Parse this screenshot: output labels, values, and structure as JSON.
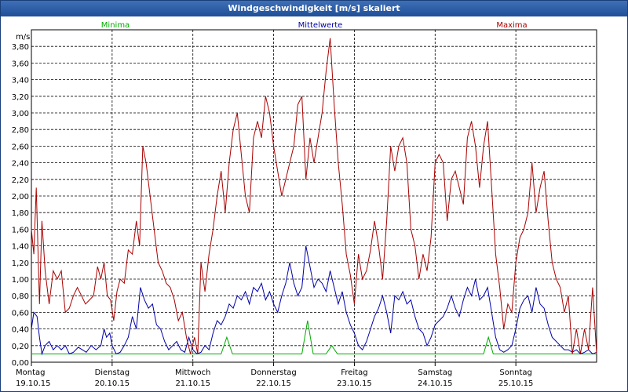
{
  "window": {
    "title": "Windgeschwindigkeit [m/s] skaliert"
  },
  "chart_data": {
    "type": "line",
    "title": "Windgeschwindigkeit [m/s] skaliert",
    "ylabel": "m/s",
    "xlabel": "",
    "ylim": [
      0,
      4.0
    ],
    "xlim": [
      0,
      7
    ],
    "grid": true,
    "legend_placement": "top",
    "y_ticks": [
      "0,00",
      "0,20",
      "0,40",
      "0,60",
      "0,80",
      "1,00",
      "1,20",
      "1,40",
      "1,60",
      "1,80",
      "2,00",
      "2,20",
      "2,40",
      "2,60",
      "2,80",
      "3,00",
      "3,20",
      "3,40",
      "3,60",
      "3,80"
    ],
    "x_ticks": [
      {
        "day": "Montag",
        "date": "19.10.15"
      },
      {
        "day": "Dienstag",
        "date": "20.10.15"
      },
      {
        "day": "Mittwoch",
        "date": "21.10.15"
      },
      {
        "day": "Donnerstag",
        "date": "22.10.15"
      },
      {
        "day": "Freitag",
        "date": "23.10.15"
      },
      {
        "day": "Samstag",
        "date": "24.10.15"
      },
      {
        "day": "Sonntag",
        "date": "25.10.15"
      }
    ],
    "series": [
      {
        "name": "Minima",
        "color": "#00aa00",
        "points": [
          [
            0,
            0.1
          ],
          [
            2.35,
            0.1
          ],
          [
            2.42,
            0.3
          ],
          [
            2.49,
            0.1
          ],
          [
            3.35,
            0.1
          ],
          [
            3.42,
            0.5
          ],
          [
            3.49,
            0.1
          ],
          [
            3.65,
            0.1
          ],
          [
            3.72,
            0.2
          ],
          [
            3.79,
            0.1
          ],
          [
            5.6,
            0.1
          ],
          [
            5.66,
            0.3
          ],
          [
            5.72,
            0.1
          ],
          [
            7,
            0.1
          ]
        ]
      },
      {
        "name": "Mittelwerte",
        "color": "#0000aa",
        "points": [
          [
            0,
            0.4
          ],
          [
            0.03,
            0.6
          ],
          [
            0.07,
            0.55
          ],
          [
            0.1,
            0.3
          ],
          [
            0.13,
            0.1
          ],
          [
            0.17,
            0.2
          ],
          [
            0.22,
            0.25
          ],
          [
            0.27,
            0.15
          ],
          [
            0.32,
            0.2
          ],
          [
            0.37,
            0.15
          ],
          [
            0.42,
            0.2
          ],
          [
            0.47,
            0.1
          ],
          [
            0.52,
            0.12
          ],
          [
            0.58,
            0.18
          ],
          [
            0.63,
            0.15
          ],
          [
            0.68,
            0.12
          ],
          [
            0.74,
            0.2
          ],
          [
            0.8,
            0.15
          ],
          [
            0.86,
            0.2
          ],
          [
            0.9,
            0.4
          ],
          [
            0.93,
            0.3
          ],
          [
            0.97,
            0.35
          ],
          [
            1.0,
            0.2
          ],
          [
            1.05,
            0.1
          ],
          [
            1.1,
            0.12
          ],
          [
            1.15,
            0.2
          ],
          [
            1.2,
            0.3
          ],
          [
            1.25,
            0.55
          ],
          [
            1.3,
            0.4
          ],
          [
            1.35,
            0.9
          ],
          [
            1.4,
            0.75
          ],
          [
            1.45,
            0.65
          ],
          [
            1.5,
            0.7
          ],
          [
            1.55,
            0.45
          ],
          [
            1.6,
            0.4
          ],
          [
            1.65,
            0.25
          ],
          [
            1.7,
            0.15
          ],
          [
            1.75,
            0.2
          ],
          [
            1.8,
            0.25
          ],
          [
            1.85,
            0.15
          ],
          [
            1.9,
            0.12
          ],
          [
            1.95,
            0.3
          ],
          [
            2.0,
            0.15
          ],
          [
            2.05,
            0.1
          ],
          [
            2.1,
            0.12
          ],
          [
            2.15,
            0.2
          ],
          [
            2.2,
            0.15
          ],
          [
            2.25,
            0.35
          ],
          [
            2.3,
            0.5
          ],
          [
            2.35,
            0.45
          ],
          [
            2.4,
            0.55
          ],
          [
            2.45,
            0.7
          ],
          [
            2.5,
            0.65
          ],
          [
            2.55,
            0.8
          ],
          [
            2.6,
            0.75
          ],
          [
            2.65,
            0.85
          ],
          [
            2.7,
            0.7
          ],
          [
            2.75,
            0.9
          ],
          [
            2.8,
            0.85
          ],
          [
            2.85,
            0.95
          ],
          [
            2.9,
            0.75
          ],
          [
            2.95,
            0.85
          ],
          [
            3.0,
            0.7
          ],
          [
            3.05,
            0.6
          ],
          [
            3.1,
            0.8
          ],
          [
            3.15,
            0.95
          ],
          [
            3.2,
            1.2
          ],
          [
            3.25,
            0.95
          ],
          [
            3.3,
            0.8
          ],
          [
            3.35,
            0.9
          ],
          [
            3.4,
            1.4
          ],
          [
            3.45,
            1.15
          ],
          [
            3.5,
            0.9
          ],
          [
            3.55,
            1.0
          ],
          [
            3.6,
            0.95
          ],
          [
            3.65,
            0.85
          ],
          [
            3.7,
            1.1
          ],
          [
            3.75,
            0.9
          ],
          [
            3.8,
            0.7
          ],
          [
            3.85,
            0.85
          ],
          [
            3.9,
            0.6
          ],
          [
            3.95,
            0.45
          ],
          [
            4.0,
            0.35
          ],
          [
            4.05,
            0.2
          ],
          [
            4.1,
            0.15
          ],
          [
            4.15,
            0.25
          ],
          [
            4.2,
            0.4
          ],
          [
            4.25,
            0.55
          ],
          [
            4.3,
            0.65
          ],
          [
            4.35,
            0.8
          ],
          [
            4.4,
            0.6
          ],
          [
            4.45,
            0.35
          ],
          [
            4.5,
            0.8
          ],
          [
            4.55,
            0.75
          ],
          [
            4.6,
            0.85
          ],
          [
            4.65,
            0.7
          ],
          [
            4.7,
            0.75
          ],
          [
            4.75,
            0.55
          ],
          [
            4.8,
            0.4
          ],
          [
            4.85,
            0.35
          ],
          [
            4.9,
            0.2
          ],
          [
            4.95,
            0.3
          ],
          [
            5.0,
            0.45
          ],
          [
            5.05,
            0.5
          ],
          [
            5.1,
            0.55
          ],
          [
            5.15,
            0.65
          ],
          [
            5.2,
            0.8
          ],
          [
            5.25,
            0.65
          ],
          [
            5.3,
            0.55
          ],
          [
            5.35,
            0.75
          ],
          [
            5.4,
            0.9
          ],
          [
            5.45,
            0.8
          ],
          [
            5.5,
            1.0
          ],
          [
            5.55,
            0.75
          ],
          [
            5.6,
            0.8
          ],
          [
            5.65,
            0.9
          ],
          [
            5.7,
            0.6
          ],
          [
            5.75,
            0.3
          ],
          [
            5.8,
            0.15
          ],
          [
            5.85,
            0.12
          ],
          [
            5.9,
            0.15
          ],
          [
            5.95,
            0.2
          ],
          [
            6.0,
            0.4
          ],
          [
            6.05,
            0.65
          ],
          [
            6.1,
            0.75
          ],
          [
            6.15,
            0.8
          ],
          [
            6.2,
            0.6
          ],
          [
            6.25,
            0.9
          ],
          [
            6.3,
            0.7
          ],
          [
            6.35,
            0.65
          ],
          [
            6.4,
            0.45
          ],
          [
            6.45,
            0.3
          ],
          [
            6.5,
            0.25
          ],
          [
            6.55,
            0.2
          ],
          [
            6.6,
            0.15
          ],
          [
            6.65,
            0.15
          ],
          [
            6.7,
            0.12
          ],
          [
            6.75,
            0.15
          ],
          [
            6.8,
            0.1
          ],
          [
            6.85,
            0.12
          ],
          [
            6.9,
            0.15
          ],
          [
            6.95,
            0.1
          ],
          [
            7.0,
            0.12
          ]
        ]
      },
      {
        "name": "Maxima",
        "color": "#aa0000",
        "points": [
          [
            0,
            1.6
          ],
          [
            0.03,
            1.3
          ],
          [
            0.06,
            2.1
          ],
          [
            0.1,
            0.7
          ],
          [
            0.13,
            1.7
          ],
          [
            0.17,
            1.1
          ],
          [
            0.22,
            0.7
          ],
          [
            0.27,
            1.1
          ],
          [
            0.32,
            1.0
          ],
          [
            0.37,
            1.1
          ],
          [
            0.42,
            0.6
          ],
          [
            0.47,
            0.65
          ],
          [
            0.52,
            0.8
          ],
          [
            0.57,
            0.9
          ],
          [
            0.62,
            0.8
          ],
          [
            0.67,
            0.7
          ],
          [
            0.72,
            0.75
          ],
          [
            0.77,
            0.8
          ],
          [
            0.82,
            1.15
          ],
          [
            0.86,
            1.0
          ],
          [
            0.9,
            1.2
          ],
          [
            0.94,
            0.8
          ],
          [
            0.98,
            0.75
          ],
          [
            1.02,
            0.5
          ],
          [
            1.06,
            0.85
          ],
          [
            1.1,
            1.0
          ],
          [
            1.15,
            0.95
          ],
          [
            1.2,
            1.35
          ],
          [
            1.25,
            1.3
          ],
          [
            1.3,
            1.7
          ],
          [
            1.34,
            1.4
          ],
          [
            1.38,
            2.6
          ],
          [
            1.42,
            2.4
          ],
          [
            1.47,
            2.0
          ],
          [
            1.52,
            1.6
          ],
          [
            1.57,
            1.2
          ],
          [
            1.62,
            1.1
          ],
          [
            1.67,
            0.95
          ],
          [
            1.72,
            0.9
          ],
          [
            1.77,
            0.75
          ],
          [
            1.82,
            0.5
          ],
          [
            1.87,
            0.6
          ],
          [
            1.92,
            0.3
          ],
          [
            1.97,
            0.1
          ],
          [
            2.02,
            0.3
          ],
          [
            2.06,
            0.1
          ],
          [
            2.1,
            1.2
          ],
          [
            2.15,
            0.85
          ],
          [
            2.2,
            1.3
          ],
          [
            2.25,
            1.6
          ],
          [
            2.3,
            2.0
          ],
          [
            2.35,
            2.3
          ],
          [
            2.4,
            1.8
          ],
          [
            2.45,
            2.4
          ],
          [
            2.5,
            2.8
          ],
          [
            2.55,
            3.0
          ],
          [
            2.6,
            2.5
          ],
          [
            2.65,
            2.0
          ],
          [
            2.7,
            1.8
          ],
          [
            2.75,
            2.7
          ],
          [
            2.8,
            2.9
          ],
          [
            2.85,
            2.7
          ],
          [
            2.9,
            3.2
          ],
          [
            2.95,
            3.0
          ],
          [
            3.0,
            2.6
          ],
          [
            3.05,
            2.3
          ],
          [
            3.1,
            2.0
          ],
          [
            3.15,
            2.2
          ],
          [
            3.2,
            2.4
          ],
          [
            3.25,
            2.6
          ],
          [
            3.3,
            3.1
          ],
          [
            3.35,
            3.2
          ],
          [
            3.4,
            2.2
          ],
          [
            3.45,
            2.7
          ],
          [
            3.5,
            2.4
          ],
          [
            3.55,
            2.7
          ],
          [
            3.6,
            3.0
          ],
          [
            3.65,
            3.5
          ],
          [
            3.7,
            3.9
          ],
          [
            3.75,
            3.1
          ],
          [
            3.8,
            2.4
          ],
          [
            3.85,
            1.9
          ],
          [
            3.9,
            1.3
          ],
          [
            3.95,
            1.05
          ],
          [
            4.0,
            0.7
          ],
          [
            4.05,
            1.3
          ],
          [
            4.1,
            1.0
          ],
          [
            4.15,
            1.1
          ],
          [
            4.2,
            1.35
          ],
          [
            4.25,
            1.7
          ],
          [
            4.3,
            1.4
          ],
          [
            4.35,
            1.0
          ],
          [
            4.4,
            1.7
          ],
          [
            4.45,
            2.6
          ],
          [
            4.5,
            2.3
          ],
          [
            4.55,
            2.6
          ],
          [
            4.6,
            2.7
          ],
          [
            4.65,
            2.4
          ],
          [
            4.7,
            1.6
          ],
          [
            4.75,
            1.4
          ],
          [
            4.8,
            1.0
          ],
          [
            4.85,
            1.3
          ],
          [
            4.9,
            1.1
          ],
          [
            4.95,
            1.5
          ],
          [
            5.0,
            2.4
          ],
          [
            5.05,
            2.5
          ],
          [
            5.1,
            2.4
          ],
          [
            5.15,
            1.7
          ],
          [
            5.2,
            2.2
          ],
          [
            5.25,
            2.3
          ],
          [
            5.3,
            2.1
          ],
          [
            5.35,
            1.9
          ],
          [
            5.4,
            2.7
          ],
          [
            5.45,
            2.9
          ],
          [
            5.5,
            2.6
          ],
          [
            5.55,
            2.1
          ],
          [
            5.6,
            2.6
          ],
          [
            5.65,
            2.9
          ],
          [
            5.7,
            2.1
          ],
          [
            5.75,
            1.3
          ],
          [
            5.8,
            0.9
          ],
          [
            5.85,
            0.4
          ],
          [
            5.9,
            0.7
          ],
          [
            5.95,
            0.6
          ],
          [
            6.0,
            1.2
          ],
          [
            6.05,
            1.5
          ],
          [
            6.1,
            1.6
          ],
          [
            6.15,
            1.8
          ],
          [
            6.2,
            2.4
          ],
          [
            6.25,
            1.8
          ],
          [
            6.3,
            2.1
          ],
          [
            6.35,
            2.3
          ],
          [
            6.4,
            1.7
          ],
          [
            6.45,
            1.2
          ],
          [
            6.5,
            1.0
          ],
          [
            6.55,
            0.9
          ],
          [
            6.6,
            0.6
          ],
          [
            6.65,
            0.8
          ],
          [
            6.7,
            0.1
          ],
          [
            6.75,
            0.4
          ],
          [
            6.8,
            0.1
          ],
          [
            6.85,
            0.4
          ],
          [
            6.9,
            0.15
          ],
          [
            6.95,
            0.9
          ],
          [
            7.0,
            0.1
          ]
        ]
      }
    ]
  }
}
